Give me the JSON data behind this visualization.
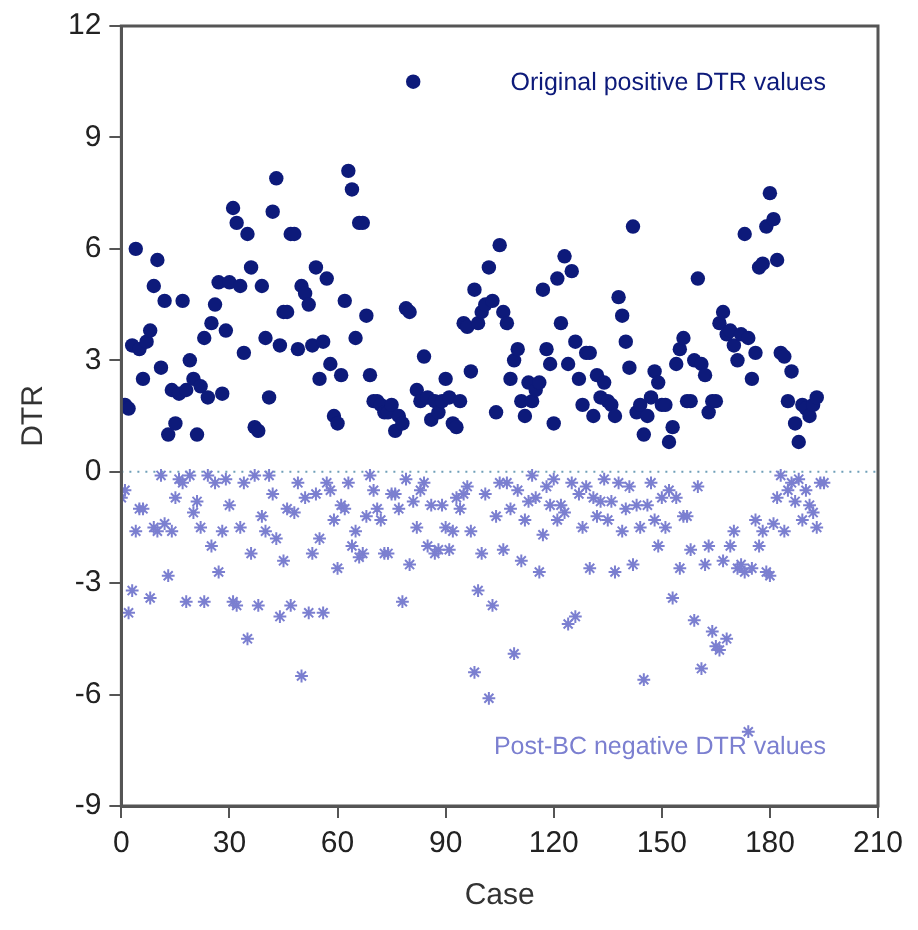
{
  "chart_data": {
    "type": "scatter",
    "xlabel": "Case",
    "ylabel": "DTR",
    "xlim": [
      0,
      210
    ],
    "xticks": [
      0,
      30,
      60,
      90,
      120,
      150,
      180,
      210
    ],
    "ylim": [
      -9,
      12
    ],
    "yticks": [
      -9,
      -6,
      -3,
      0,
      3,
      6,
      9,
      12
    ],
    "grid": false,
    "legend": false,
    "ref_lines": [
      {
        "axis": "y",
        "value": 0,
        "color": "#6f9fb8",
        "line_style": "dotted"
      }
    ],
    "series": [
      {
        "name": "Original positive DTR values",
        "color": "#0d1a7a",
        "marker": "circle",
        "x": [
          1,
          2,
          3,
          4,
          5,
          6,
          7,
          8,
          9,
          10,
          11,
          12,
          13,
          14,
          15,
          16,
          17,
          18,
          19,
          20,
          21,
          22,
          23,
          24,
          25,
          26,
          27,
          28,
          29,
          30,
          31,
          32,
          33,
          34,
          35,
          36,
          37,
          38,
          39,
          40,
          41,
          42,
          43,
          44,
          45,
          46,
          47,
          48,
          49,
          50,
          51,
          52,
          53,
          54,
          55,
          56,
          57,
          58,
          59,
          60,
          61,
          62,
          63,
          64,
          65,
          66,
          67,
          68,
          69,
          70,
          71,
          72,
          73,
          74,
          75,
          76,
          77,
          78,
          79,
          80,
          81,
          82,
          83,
          84,
          85,
          86,
          87,
          88,
          89,
          90,
          91,
          92,
          93,
          94,
          95,
          96,
          97,
          98,
          99,
          100,
          101,
          102,
          103,
          104,
          105,
          106,
          107,
          108,
          109,
          110,
          111,
          112,
          113,
          114,
          115,
          116,
          117,
          118,
          119,
          120,
          121,
          122,
          123,
          124,
          125,
          126,
          127,
          128,
          129,
          130,
          131,
          132,
          133,
          134,
          135,
          136,
          137,
          138,
          139,
          140,
          141,
          142,
          143,
          144,
          145,
          146,
          147,
          148,
          149,
          150,
          151,
          152,
          153,
          154,
          155,
          156,
          157,
          158,
          159,
          160,
          161,
          162,
          163,
          164,
          165,
          166,
          167,
          168,
          169,
          170,
          171,
          172,
          173,
          174,
          175,
          176,
          177,
          178,
          179,
          180,
          181,
          182,
          183,
          184,
          185,
          186,
          187,
          188,
          189,
          190,
          191,
          192,
          193
        ],
        "values": [
          1.8,
          1.7,
          3.4,
          6.0,
          3.3,
          2.5,
          3.5,
          3.8,
          5.0,
          5.7,
          2.8,
          4.6,
          1.0,
          2.2,
          1.3,
          2.1,
          4.6,
          2.2,
          3.0,
          2.5,
          1.0,
          2.3,
          3.6,
          2.0,
          4.0,
          4.5,
          5.1,
          2.1,
          3.8,
          5.1,
          7.1,
          6.7,
          5.0,
          3.2,
          6.4,
          5.5,
          1.2,
          1.1,
          5.0,
          3.6,
          2.0,
          7.0,
          7.9,
          3.4,
          4.3,
          4.3,
          6.4,
          6.4,
          3.3,
          5.0,
          4.8,
          4.5,
          3.4,
          5.5,
          2.5,
          3.5,
          5.2,
          2.9,
          1.5,
          1.3,
          2.6,
          4.6,
          8.1,
          7.6,
          3.6,
          6.7,
          6.7,
          4.2,
          2.6,
          1.9,
          1.9,
          1.8,
          1.6,
          1.6,
          1.8,
          1.1,
          1.5,
          1.3,
          4.4,
          4.3,
          10.5,
          2.2,
          1.9,
          3.1,
          2.0,
          1.4,
          1.9,
          1.6,
          1.9,
          2.5,
          2.0,
          1.3,
          1.2,
          1.9,
          4.0,
          3.9,
          2.7,
          4.9,
          4.0,
          4.3,
          4.5,
          5.5,
          4.6,
          1.6,
          6.1,
          4.3,
          4.0,
          2.5,
          3.0,
          3.3,
          1.9,
          1.5,
          2.4,
          1.9,
          2.2,
          2.4,
          4.9,
          3.3,
          2.9,
          1.3,
          5.2,
          4.0,
          5.8,
          2.9,
          5.4,
          3.5,
          2.5,
          1.8,
          3.2,
          3.2,
          1.5,
          2.6,
          2.0,
          2.4,
          1.9,
          1.8,
          1.5,
          4.7,
          4.2,
          3.5,
          2.8,
          6.6,
          1.6,
          1.8,
          1.0,
          1.5,
          2.0,
          2.7,
          2.4,
          1.8,
          1.8,
          0.8,
          1.2,
          2.9,
          3.3,
          3.6,
          1.9,
          1.9,
          3.0,
          5.2,
          2.9,
          2.6,
          1.6,
          1.9,
          1.9,
          4.0,
          4.3,
          3.7,
          3.8,
          3.4,
          3.0,
          3.7,
          6.4,
          3.6,
          2.5,
          3.2,
          5.5,
          5.6,
          6.6,
          7.5,
          6.8,
          5.7,
          3.2,
          3.1,
          1.9,
          2.7,
          1.3,
          0.8,
          1.8,
          1.7,
          1.5,
          1.8,
          2.0
        ]
      },
      {
        "name": "Post-BC negative DTR values",
        "color": "#7b7fd0",
        "marker": "cross",
        "x": [
          0,
          1,
          2,
          3,
          4,
          5,
          6,
          8,
          9,
          10,
          11,
          12,
          13,
          14,
          15,
          16,
          17,
          18,
          19,
          20,
          21,
          22,
          23,
          24,
          25,
          26,
          27,
          28,
          29,
          30,
          31,
          32,
          33,
          34,
          35,
          36,
          37,
          38,
          39,
          40,
          41,
          42,
          43,
          44,
          45,
          46,
          47,
          48,
          49,
          50,
          51,
          52,
          53,
          54,
          55,
          56,
          57,
          58,
          59,
          60,
          61,
          62,
          63,
          64,
          65,
          66,
          67,
          68,
          69,
          70,
          71,
          72,
          73,
          74,
          75,
          76,
          77,
          78,
          79,
          80,
          81,
          82,
          83,
          84,
          85,
          86,
          87,
          88,
          89,
          90,
          91,
          92,
          93,
          94,
          95,
          96,
          97,
          98,
          99,
          100,
          101,
          102,
          103,
          104,
          105,
          106,
          107,
          108,
          109,
          110,
          111,
          112,
          113,
          114,
          115,
          116,
          117,
          118,
          119,
          120,
          121,
          122,
          123,
          124,
          125,
          126,
          127,
          128,
          129,
          130,
          131,
          132,
          133,
          134,
          135,
          136,
          137,
          138,
          139,
          140,
          141,
          142,
          143,
          144,
          145,
          146,
          147,
          148,
          149,
          150,
          151,
          152,
          153,
          154,
          155,
          156,
          157,
          158,
          159,
          160,
          161,
          162,
          163,
          164,
          165,
          166,
          167,
          168,
          169,
          170,
          171,
          172,
          173,
          174,
          175,
          176,
          177,
          178,
          179,
          180,
          181,
          182,
          183,
          184,
          185,
          186,
          187,
          188,
          189,
          190,
          191,
          192,
          193,
          194,
          195
        ],
        "values": [
          -0.7,
          -0.5,
          -3.8,
          -3.2,
          -1.6,
          -1.0,
          -1.0,
          -3.4,
          -1.5,
          -1.6,
          -0.1,
          -1.4,
          -2.8,
          -1.6,
          -0.7,
          -0.2,
          -0.3,
          -3.5,
          -0.1,
          -1.1,
          -0.8,
          -1.5,
          -3.5,
          -0.1,
          -2.0,
          -0.3,
          -2.7,
          -1.6,
          -0.2,
          -0.9,
          -3.5,
          -3.6,
          -1.5,
          -0.3,
          -4.5,
          -2.2,
          -0.1,
          -3.6,
          -1.2,
          -1.6,
          -0.1,
          -0.6,
          -1.8,
          -3.9,
          -2.4,
          -1.0,
          -3.6,
          -1.1,
          -0.3,
          -5.5,
          -0.7,
          -3.8,
          -2.2,
          -0.6,
          -1.8,
          -3.8,
          -0.3,
          -0.5,
          -1.3,
          -2.6,
          -0.9,
          -1.0,
          -0.3,
          -2.0,
          -1.6,
          -2.3,
          -2.2,
          -1.2,
          -0.1,
          -0.5,
          -1.0,
          -1.3,
          -2.2,
          -2.2,
          -0.6,
          -0.6,
          -1.0,
          -3.5,
          -0.2,
          -2.5,
          -0.8,
          -1.5,
          -0.5,
          -0.3,
          -2.0,
          -0.9,
          -2.2,
          -2.1,
          -0.9,
          -1.5,
          -2.1,
          -1.6,
          -0.7,
          -1.0,
          -0.6,
          -0.4,
          -1.6,
          -5.4,
          -3.2,
          -2.2,
          -0.6,
          -6.1,
          -3.6,
          -1.2,
          -0.3,
          -2.1,
          -0.3,
          -1.0,
          -4.9,
          -0.5,
          -2.4,
          -1.3,
          -0.8,
          -0.1,
          -0.7,
          -2.7,
          -1.7,
          -0.4,
          -0.9,
          -0.2,
          -1.3,
          -0.9,
          -1.1,
          -4.1,
          -0.3,
          -3.9,
          -0.6,
          -1.5,
          -0.4,
          -2.6,
          -0.7,
          -1.2,
          -0.8,
          -0.2,
          -1.3,
          -0.8,
          -2.7,
          -0.3,
          -1.6,
          -1.0,
          -0.4,
          -2.5,
          -0.9,
          -1.5,
          -5.6,
          -0.9,
          -0.3,
          -1.3,
          -2.0,
          -0.7,
          -1.5,
          -0.5,
          -3.4,
          -0.7,
          -2.6,
          -1.2,
          -1.2,
          -2.1,
          -4.0,
          -0.4,
          -5.3,
          -2.5,
          -2.0,
          -4.3,
          -4.7,
          -4.8,
          -2.4,
          -4.5,
          -2.0,
          -1.6,
          -2.6,
          -2.5,
          -2.7,
          -7.0,
          -2.6,
          -1.3,
          -2.0,
          -1.6,
          -2.7,
          -2.8,
          -1.4,
          -0.7,
          -0.1,
          -1.6,
          -0.5,
          -0.3,
          -0.8,
          -0.2,
          -1.3,
          -0.5,
          -0.9,
          -1.1,
          -1.5,
          -0.3,
          -0.3
        ]
      }
    ]
  }
}
